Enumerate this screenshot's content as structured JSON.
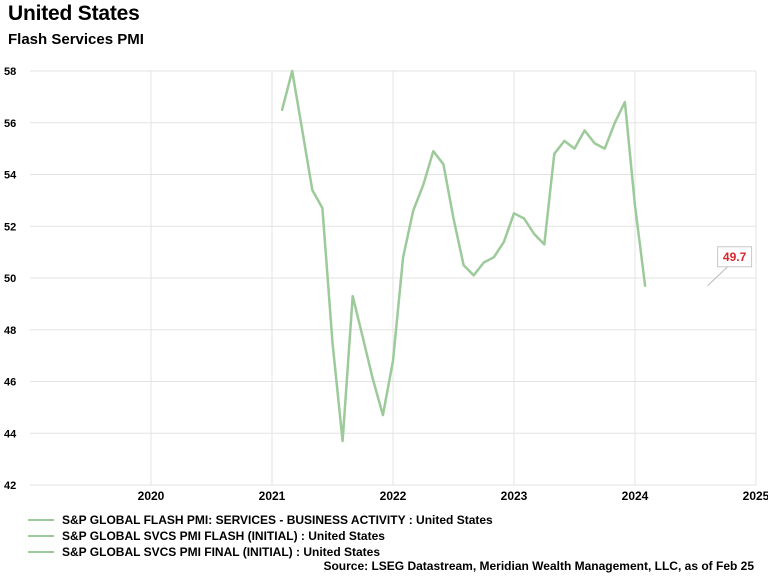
{
  "header": {
    "title": "United States",
    "subtitle": "Flash Services PMI"
  },
  "chart_data": {
    "type": "line",
    "title": "United States",
    "subtitle": "Flash Services PMI",
    "xlabel": "",
    "ylabel": "",
    "ylim": [
      42,
      58
    ],
    "yticks": [
      42,
      44,
      46,
      48,
      50,
      52,
      54,
      56,
      58
    ],
    "xlim": [
      "2019-07",
      "2025-07"
    ],
    "xticks": [
      "2020",
      "2021",
      "2022",
      "2023",
      "2024",
      "2025"
    ],
    "grid": true,
    "legend_position": "bottom",
    "series": [
      {
        "name": "S&P GLOBAL FLASH PMI: SERVICES - BUSINESS ACTIVITY : United States",
        "color": "#9dca9a",
        "x": [
          "2021-08",
          "2021-09",
          "2021-10",
          "2021-11",
          "2021-12",
          "2022-01",
          "2022-02",
          "2022-03",
          "2022-04",
          "2022-05",
          "2022-06",
          "2022-07",
          "2022-08",
          "2022-09",
          "2022-10",
          "2022-11",
          "2022-12",
          "2023-01",
          "2023-02",
          "2023-03",
          "2023-04",
          "2023-05",
          "2023-06",
          "2023-07",
          "2023-08",
          "2023-09",
          "2023-10",
          "2023-11",
          "2023-12",
          "2024-01",
          "2024-02",
          "2024-03",
          "2024-04",
          "2024-05",
          "2024-06",
          "2024-07",
          "2024-08",
          "2024-09",
          "2024-10",
          "2024-11",
          "2024-12",
          "2025-01",
          "2025-02"
        ],
        "values": [
          56.5,
          58.0,
          55.7,
          53.4,
          52.7,
          47.5,
          43.7,
          49.3,
          47.7,
          46.1,
          44.7,
          46.8,
          50.8,
          52.6,
          53.6,
          54.9,
          54.4,
          52.3,
          50.5,
          50.1,
          50.6,
          50.8,
          51.4,
          52.5,
          52.3,
          51.7,
          51.3,
          54.8,
          55.3,
          55.0,
          55.7,
          55.2,
          55.0,
          56.0,
          56.8,
          52.8,
          49.7,
          null,
          null,
          null,
          null,
          null,
          null
        ]
      },
      {
        "name": "S&P GLOBAL SVCS PMI FLASH (INITIAL) : United States",
        "color": "#9dca9a",
        "values": []
      },
      {
        "name": "S&P GLOBAL SVCS PMI FINAL (INITIAL) : United States",
        "color": "#9dca9a",
        "values": []
      }
    ],
    "annotations": [
      {
        "text": "49.7",
        "x": "2025-02",
        "y": 49.7,
        "color": "#d9262b"
      }
    ]
  },
  "source": "Source: LSEG Datastream, Meridian Wealth Management, LLC, as of Feb 25",
  "colors": {
    "line": "#9dca9a",
    "grid": "#e3e3e3",
    "annotation_text": "#d9262b",
    "annotation_border": "#c8c8c8"
  }
}
